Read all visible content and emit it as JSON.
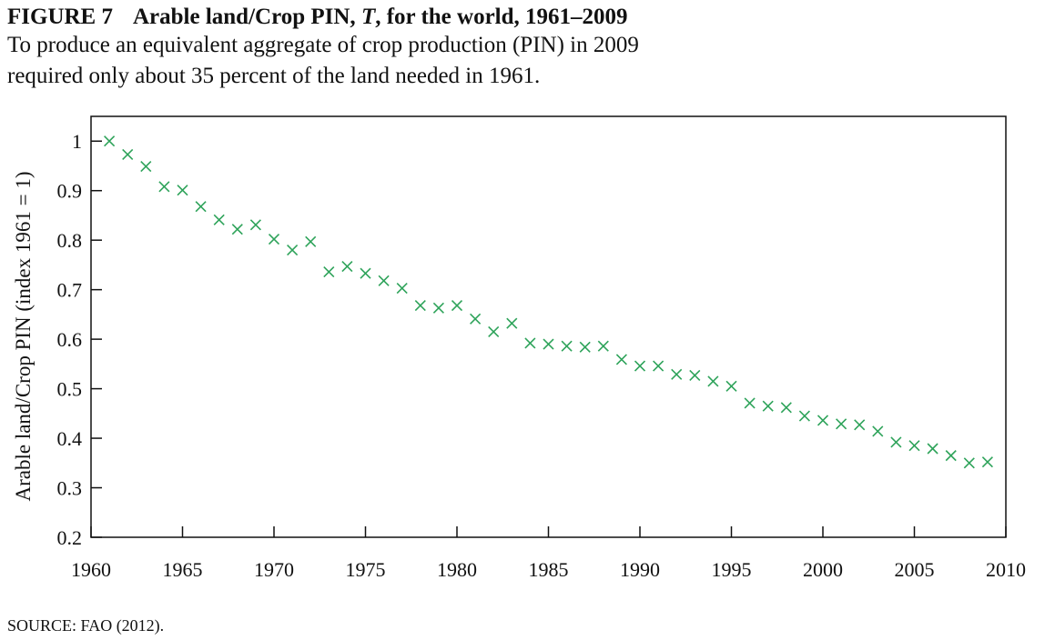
{
  "chart_data": {
    "type": "scatter",
    "figure_label": "FIGURE 7",
    "title_parts": [
      "Arable land/Crop PIN, ",
      "T",
      ", for the world, 1961–2009"
    ],
    "subtitle_lines": [
      "To produce an equivalent aggregate of crop production (PIN) in 2009",
      "required only about 35 percent of the land needed in 1961."
    ],
    "y_label": "Arable land/Crop PIN (index 1961 = 1)",
    "source": "SOURCE: FAO (2012).",
    "marker": "x",
    "color": "#2ea35a",
    "x": [
      1961,
      1962,
      1963,
      1964,
      1965,
      1966,
      1967,
      1968,
      1969,
      1970,
      1971,
      1972,
      1973,
      1974,
      1975,
      1976,
      1977,
      1978,
      1979,
      1980,
      1981,
      1982,
      1983,
      1984,
      1985,
      1986,
      1987,
      1988,
      1989,
      1990,
      1991,
      1992,
      1993,
      1994,
      1995,
      1996,
      1997,
      1998,
      1999,
      2000,
      2001,
      2002,
      2003,
      2004,
      2005,
      2006,
      2007,
      2008,
      2009
    ],
    "values": [
      1.0,
      0.973,
      0.949,
      0.908,
      0.901,
      0.868,
      0.841,
      0.822,
      0.831,
      0.802,
      0.78,
      0.797,
      0.736,
      0.747,
      0.733,
      0.718,
      0.703,
      0.668,
      0.663,
      0.668,
      0.641,
      0.615,
      0.632,
      0.592,
      0.59,
      0.586,
      0.584,
      0.586,
      0.559,
      0.546,
      0.546,
      0.529,
      0.527,
      0.515,
      0.505,
      0.471,
      0.465,
      0.462,
      0.445,
      0.436,
      0.429,
      0.427,
      0.414,
      0.392,
      0.385,
      0.379,
      0.365,
      0.35,
      0.352
    ],
    "xlim": [
      1960,
      2010
    ],
    "xticks": [
      1960,
      1965,
      1970,
      1975,
      1980,
      1985,
      1990,
      1995,
      2000,
      2005,
      2010
    ],
    "ylim": [
      0.2,
      1.05
    ],
    "yticks": [
      0.2,
      0.3,
      0.4,
      0.5,
      0.6,
      0.7,
      0.8,
      0.9,
      1
    ]
  }
}
